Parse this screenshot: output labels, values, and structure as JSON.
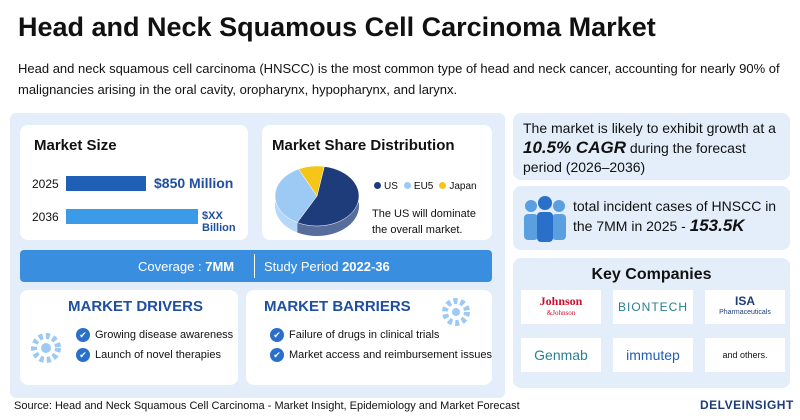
{
  "header": {
    "title": "Head and Neck Squamous Cell Carcinoma Market",
    "description": "Head and neck squamous cell carcinoma (HNSCC) is the most common type of head and neck cancer, accounting for nearly 90% of malignancies arising in the oral cavity, oropharynx, hypopharynx, and larynx."
  },
  "market_size": {
    "title": "Market Size",
    "rows": [
      {
        "year": "2025",
        "value": "$850 Million"
      },
      {
        "year": "2036",
        "value": "$XX Billion"
      }
    ]
  },
  "market_share": {
    "title": "Market Share Distribution",
    "legend": [
      "US",
      "EU5",
      "Japan"
    ],
    "colors": [
      "#1f3c7a",
      "#9ccaf5",
      "#f5c518"
    ],
    "values": [
      55,
      35,
      10
    ],
    "note": "The US will dominate the overall market."
  },
  "coverage": {
    "label": "Coverage :",
    "value": "7MM"
  },
  "study_period": {
    "label": "Study Period",
    "value": "2022-36"
  },
  "drivers": {
    "title": "MARKET DRIVERS",
    "items": [
      "Growing disease awareness",
      "Launch of novel therapies"
    ]
  },
  "barriers": {
    "title": "MARKET BARRIERS",
    "items": [
      "Failure of drugs in clinical trials",
      "Market access and reimbursement issues"
    ]
  },
  "growth": {
    "text_before": "The market is likely to exhibit growth at a",
    "cagr": "10.5% CAGR",
    "text_after": "during the forecast period (2026–2036)"
  },
  "cases": {
    "text": "total incident cases of HNSCC in the 7MM in 2025 -",
    "value": "153.5K"
  },
  "companies": {
    "title": "Key Companies",
    "items": [
      [
        "Johnson",
        "&Johnson"
      ],
      [
        "BIONTECH"
      ],
      [
        "ISA",
        "Pharmaceuticals"
      ],
      [
        "Genmab"
      ],
      [
        "immutep"
      ],
      [
        "and others."
      ]
    ]
  },
  "footer": {
    "source": "Source: Head and Neck Squamous Cell Carcinoma - Market Insight, Epidemiology and Market Forecast",
    "brand": "DELVEINSIGHT"
  }
}
